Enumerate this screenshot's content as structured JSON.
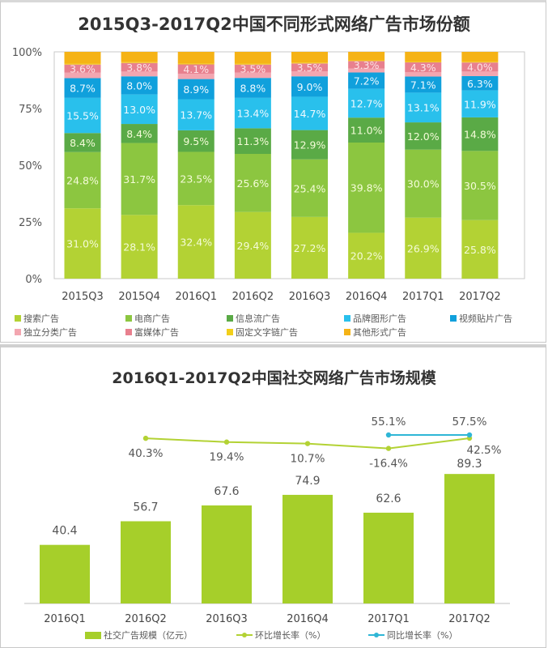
{
  "chart_data": [
    {
      "type": "bar",
      "stacked": true,
      "title": "2015Q3-2017Q2中国不同形式网络广告市场份额",
      "xlabel": "",
      "ylabel": "",
      "ylim": [
        0,
        100
      ],
      "yticks": [
        "0%",
        "25%",
        "50%",
        "75%",
        "100%"
      ],
      "grid": false,
      "legend_position": "bottom",
      "categories": [
        "2015Q3",
        "2015Q4",
        "2016Q1",
        "2016Q2",
        "2016Q3",
        "2016Q4",
        "2017Q1",
        "2017Q2"
      ],
      "series": [
        {
          "name": "搜索广告",
          "color": "#b3d234",
          "labeled": true,
          "values": [
            31.0,
            28.1,
            32.4,
            29.4,
            27.2,
            20.2,
            26.9,
            25.8
          ]
        },
        {
          "name": "电商广告",
          "color": "#8cc640",
          "labeled": true,
          "values": [
            24.8,
            31.7,
            23.5,
            25.6,
            25.4,
            39.8,
            30.0,
            30.5
          ]
        },
        {
          "name": "信息流广告",
          "color": "#5aaa46",
          "labeled": true,
          "values": [
            8.4,
            8.4,
            9.5,
            11.3,
            12.9,
            11.0,
            12.0,
            14.8
          ]
        },
        {
          "name": "品牌图形广告",
          "color": "#29c0ec",
          "labeled": true,
          "values": [
            15.5,
            13.0,
            13.7,
            13.4,
            14.7,
            12.7,
            13.1,
            11.9
          ]
        },
        {
          "name": "视频贴片广告",
          "color": "#10a0dc",
          "labeled": true,
          "values": [
            8.7,
            8.0,
            8.9,
            8.8,
            9.0,
            7.2,
            7.1,
            6.3
          ]
        },
        {
          "name": "独立分类广告",
          "color": "#f3a6b0",
          "labeled": false,
          "values": null
        },
        {
          "name": "富媒体广告",
          "color": "#e8808e",
          "labeled": true,
          "values": [
            3.6,
            3.8,
            4.1,
            3.5,
            3.5,
            3.3,
            4.3,
            4.0
          ]
        },
        {
          "name": "固定文字链广告",
          "color": "#f2cf1a",
          "labeled": false,
          "values": null
        },
        {
          "name": "其他形式广告",
          "color": "#f5b316",
          "labeled": false,
          "values": null
        }
      ]
    },
    {
      "type": "bar+line",
      "title": "2016Q1-2017Q2中国社交网络广告市场规模",
      "xlabel": "",
      "ylabel": "",
      "grid": false,
      "legend_position": "bottom",
      "categories": [
        "2016Q1",
        "2016Q2",
        "2016Q3",
        "2016Q4",
        "2017Q1",
        "2017Q2"
      ],
      "bars": {
        "name": "社交广告规模（亿元）",
        "color": "#a6cf2a",
        "values": [
          40.4,
          56.7,
          67.6,
          74.9,
          62.6,
          89.3
        ],
        "labels": [
          "40.4",
          "56.7",
          "67.6",
          "74.9",
          "62.6",
          "89.3"
        ]
      },
      "lines": [
        {
          "name": "环比增长率（%）",
          "color": "#b3d234",
          "values": [
            null,
            40.3,
            19.4,
            10.7,
            -16.4,
            42.5
          ],
          "labels": [
            "",
            "40.3%",
            "19.4%",
            "10.7%",
            "-16.4%",
            "42.5%"
          ]
        },
        {
          "name": "同比增长率（%）",
          "color": "#2fb6d6",
          "values": [
            null,
            null,
            null,
            null,
            55.1,
            57.5
          ],
          "labels": [
            "",
            "",
            "",
            "",
            "55.1%",
            "57.5%"
          ]
        }
      ]
    }
  ]
}
